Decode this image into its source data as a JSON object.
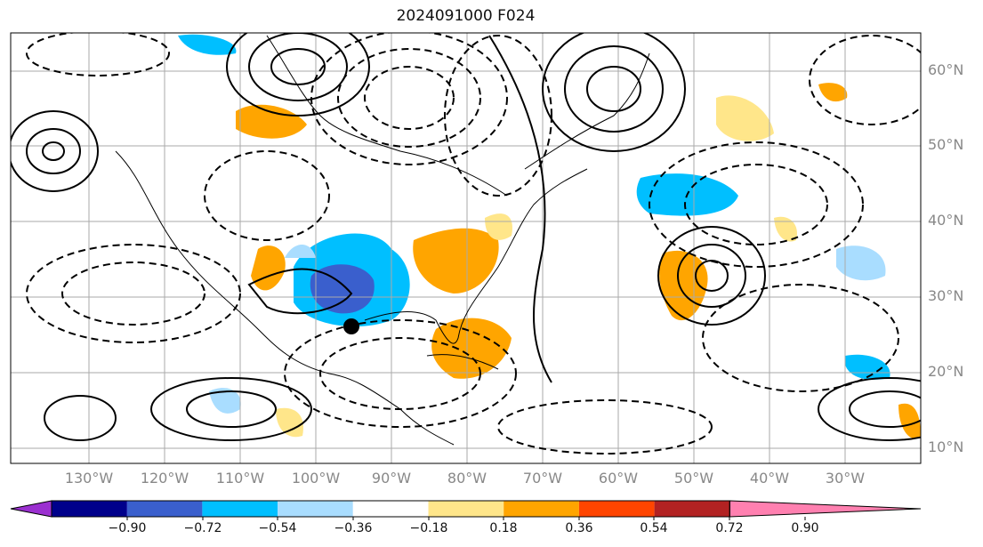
{
  "title": "2024091000 F024",
  "map": {
    "region": "North Atlantic / North America",
    "lat_labels": [
      "60°N",
      "50°N",
      "40°N",
      "30°N",
      "20°N",
      "10°N"
    ],
    "lon_labels": [
      "130°W",
      "120°W",
      "110°W",
      "100°W",
      "90°W",
      "80°W",
      "70°W",
      "60°W",
      "50°W",
      "40°W",
      "30°W"
    ],
    "marker": "storm-position-dot"
  },
  "colorbar": {
    "ticks": [
      "−0.90",
      "−0.72",
      "−0.54",
      "−0.36",
      "−0.18",
      "0.18",
      "0.36",
      "0.54",
      "0.72",
      "0.90"
    ],
    "colors": [
      "#9b30d0",
      "#00008b",
      "#3a5fcd",
      "#00bfff",
      "#a9ddff",
      "#ffffff",
      "#ffe68a",
      "#ffa500",
      "#ff4500",
      "#b22222",
      "#ff80b0"
    ]
  }
}
